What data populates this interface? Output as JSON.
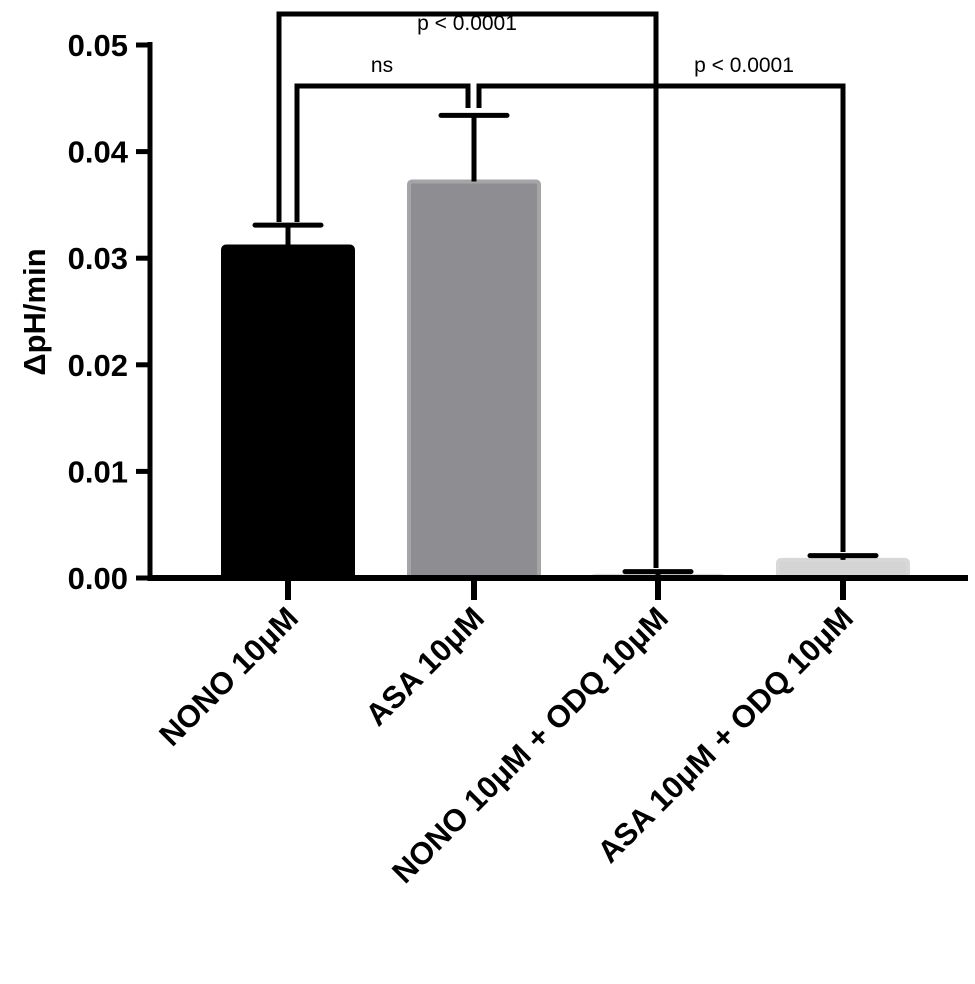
{
  "chart_data": {
    "type": "bar",
    "title": "",
    "xlabel": "",
    "ylabel": "ΔpH/min",
    "ylim": [
      0,
      0.05
    ],
    "yticks": [
      "0.00",
      "0.01",
      "0.02",
      "0.03",
      "0.04",
      "0.05"
    ],
    "grid": false,
    "categories": [
      "NONO 10μM",
      "ASA 10μM",
      "NONO 10μM + ODQ 10μM",
      "ASA 10μM + ODQ 10μM"
    ],
    "values": [
      0.0311,
      0.0372,
      0.0002,
      0.0017
    ],
    "error_upper": [
      0.0331,
      0.0434,
      0.0006,
      0.0021
    ],
    "colors": [
      "#000000",
      "#8e8e92",
      "#c8c8c8",
      "#d4d4d4"
    ],
    "comparisons": [
      {
        "from": 0,
        "to": 2,
        "label": "p < 0.0001"
      },
      {
        "from": 0,
        "to": 1,
        "label": "ns"
      },
      {
        "from": 1,
        "to": 3,
        "label": "p < 0.0001"
      }
    ]
  }
}
